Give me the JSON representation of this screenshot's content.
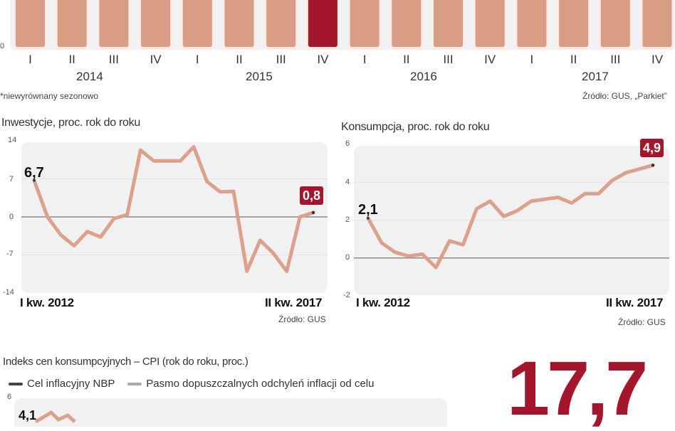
{
  "colors": {
    "bar": "#d99d86",
    "bar_highlight": "#a3162c",
    "line": "#dca08c",
    "badge": "#a3162c",
    "panel": "#f1f1f1",
    "big_number": "#a3162c",
    "legend_target": "#444444",
    "legend_band": "#aaaaaa"
  },
  "bar_chart": {
    "y_tick_zero": "0",
    "quarters": [
      "I",
      "II",
      "III",
      "IV",
      "I",
      "II",
      "III",
      "IV",
      "I",
      "II",
      "III",
      "IV",
      "I",
      "II",
      "III",
      "IV"
    ],
    "years": [
      "2014",
      "2015",
      "2016",
      "2017"
    ],
    "highlight_index": 7,
    "footnote": "*niewyrównany sezonowo",
    "source": "Źródło: GUS, „Parkiet”"
  },
  "investment": {
    "title": "Inwestycje, proc. rok do roku",
    "y_ticks": [
      "14",
      "7",
      "0",
      "-7",
      "-14"
    ],
    "x_start": "I kw. 2012",
    "x_end": "II kw. 2017",
    "start_value": "6,7",
    "end_value": "0,8",
    "source": "Źródło: GUS"
  },
  "consumption": {
    "title": "Konsumpcja, proc. rok do roku",
    "y_ticks": [
      "6",
      "4",
      "2",
      "0",
      "-2"
    ],
    "x_start": "I kw. 2012",
    "x_end": "II kw. 2017",
    "start_value": "2,1",
    "end_value": "4,9",
    "source": "Źródło: GUS"
  },
  "cpi": {
    "title": "Indeks cen konsumpcyjnych – CPI (rok do roku, proc.)",
    "legend": [
      {
        "label": "Cel inflacyjny NBP"
      },
      {
        "label": "Pasmo dopuszczalnych odchyleń inflacji od celu"
      }
    ],
    "y_tick_top": "6",
    "start_value": "4,1"
  },
  "highlight_number": "17,7",
  "chart_data": [
    {
      "type": "bar",
      "title": "",
      "categories": [
        "2014 I",
        "2014 II",
        "2014 III",
        "2014 IV",
        "2015 I",
        "2015 II",
        "2015 III",
        "2015 IV",
        "2016 I",
        "2016 II",
        "2016 III",
        "2016 IV",
        "2017 I",
        "2017 II",
        "2017 III",
        "2017 IV"
      ],
      "values": [
        null,
        null,
        null,
        null,
        null,
        null,
        null,
        null,
        null,
        null,
        null,
        null,
        null,
        null,
        null,
        null
      ],
      "note": "Bar tops cropped out of view; highlighted bar: 2015 IV",
      "footnote": "*niewyrównany sezonowo",
      "source": "Źródło: GUS, „Parkiet”",
      "grid": false
    },
    {
      "type": "line",
      "title": "Inwestycje, proc. rok do roku",
      "x": [
        "I 2012",
        "II 2012",
        "III 2012",
        "IV 2012",
        "I 2013",
        "II 2013",
        "III 2013",
        "IV 2013",
        "I 2014",
        "II 2014",
        "III 2014",
        "IV 2014",
        "I 2015",
        "II 2015",
        "III 2015",
        "IV 2015",
        "I 2016",
        "II 2016",
        "III 2016",
        "IV 2016",
        "I 2017",
        "II 2017"
      ],
      "values": [
        6.7,
        0.0,
        -3.3,
        -5.3,
        -2.7,
        -3.7,
        -0.3,
        0.4,
        12.3,
        10.3,
        10.3,
        10.3,
        12.9,
        6.5,
        4.6,
        4.7,
        -10.0,
        -4.3,
        -6.7,
        -10.0,
        0.0,
        0.8
      ],
      "ylim": [
        -14,
        14
      ],
      "yticks": [
        -14,
        -7,
        0,
        7,
        14
      ],
      "annotations": [
        "6,7",
        "0,8"
      ],
      "xlabel_start": "I kw. 2012",
      "xlabel_end": "II kw. 2017",
      "grid": true,
      "source": "Źródło: GUS"
    },
    {
      "type": "line",
      "title": "Konsumpcja, proc. rok do roku",
      "x": [
        "I 2012",
        "II 2012",
        "III 2012",
        "IV 2012",
        "I 2013",
        "II 2013",
        "III 2013",
        "IV 2013",
        "I 2014",
        "II 2014",
        "III 2014",
        "IV 2014",
        "I 2015",
        "II 2015",
        "III 2015",
        "IV 2015",
        "I 2016",
        "II 2016",
        "III 2016",
        "IV 2016",
        "I 2017",
        "II 2017"
      ],
      "values": [
        2.1,
        0.8,
        0.3,
        0.1,
        0.2,
        -0.5,
        0.9,
        0.7,
        2.6,
        3.0,
        2.2,
        2.5,
        3.0,
        3.1,
        3.2,
        2.9,
        3.4,
        3.4,
        4.1,
        4.5,
        4.7,
        4.9
      ],
      "ylim": [
        -2,
        6
      ],
      "yticks": [
        -2,
        0,
        2,
        4,
        6
      ],
      "annotations": [
        "2,1",
        "4,9"
      ],
      "xlabel_start": "I kw. 2012",
      "xlabel_end": "II kw. 2017",
      "grid": true,
      "source": "Źródło: GUS"
    },
    {
      "type": "line",
      "title": "Indeks cen konsumpcyjnych – CPI (rok do roku, proc.)",
      "legend": [
        "Cel inflacyjny NBP",
        "Pasmo dopuszczalnych odchyleń inflacji od celu"
      ],
      "yticks_visible": [
        6
      ],
      "annotations": [
        "4,1"
      ],
      "note": "Chart mostly cropped below the frame"
    }
  ]
}
